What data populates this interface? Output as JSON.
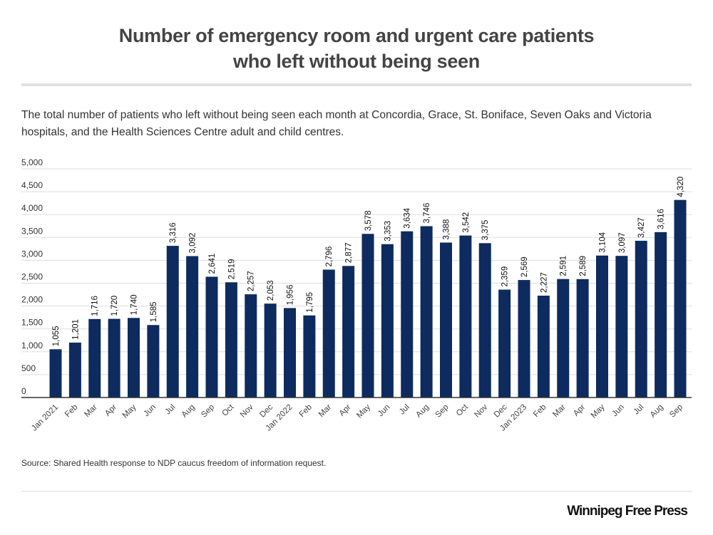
{
  "title_line1": "Number of emergency room and urgent care patients",
  "title_line2": "who left without being seen",
  "subtitle": "The total number of patients who left without being seen each month at Concordia, Grace, St. Boniface, Seven Oaks and Victoria hospitals, and the Health Sciences Centre adult and child centres.",
  "source": "Source: Shared Health response to NDP caucus freedom of information request.",
  "logo": "Winnipeg Free Press",
  "colors": {
    "bar": "#0d2b5e",
    "grid": "#dddddd",
    "axis": "#333333"
  },
  "chart_data": {
    "type": "bar",
    "title": "Number of emergency room and urgent care patients who left without being seen",
    "xlabel": "",
    "ylabel": "",
    "ylim": [
      0,
      5000
    ],
    "yticks": [
      0,
      500,
      1000,
      1500,
      2000,
      2500,
      3000,
      3500,
      4000,
      4500,
      5000
    ],
    "ytick_labels": [
      "0",
      "500",
      "1,000",
      "1,500",
      "2,000",
      "2,500",
      "3,000",
      "3,500",
      "4,000",
      "4,500",
      "5,000"
    ],
    "grid": true,
    "categories": [
      "Jan 2021",
      "Feb",
      "Mar",
      "Apr",
      "May",
      "Jun",
      "Jul",
      "Aug",
      "Sep",
      "Oct",
      "Nov",
      "Dec",
      "Jan 2022",
      "Feb",
      "Mar",
      "Apr",
      "May",
      "Jun",
      "Jul",
      "Aug",
      "Sep",
      "Oct",
      "Nov",
      "Dec",
      "Jan 2023",
      "Feb",
      "Mar",
      "Apr",
      "May",
      "Jun",
      "Jul",
      "Aug",
      "Sep"
    ],
    "values": [
      1055,
      1201,
      1716,
      1720,
      1740,
      1585,
      3316,
      3092,
      2641,
      2519,
      2257,
      2053,
      1956,
      1795,
      2796,
      2877,
      3578,
      3353,
      3634,
      3746,
      3388,
      3542,
      3375,
      2359,
      2569,
      2227,
      2591,
      2589,
      3104,
      3097,
      3427,
      3616,
      4320
    ],
    "value_labels": [
      "1,055",
      "1,201",
      "1,716",
      "1,720",
      "1,740",
      "1,585",
      "3,316",
      "3,092",
      "2,641",
      "2,519",
      "2,257",
      "2,053",
      "1,956",
      "1,795",
      "2,796",
      "2,877",
      "3,578",
      "3,353",
      "3,634",
      "3,746",
      "3,388",
      "3,542",
      "3,375",
      "2,359",
      "2,569",
      "2,227",
      "2,591",
      "2,589",
      "3,104",
      "3,097",
      "3,427",
      "3,616",
      "4,320"
    ]
  }
}
